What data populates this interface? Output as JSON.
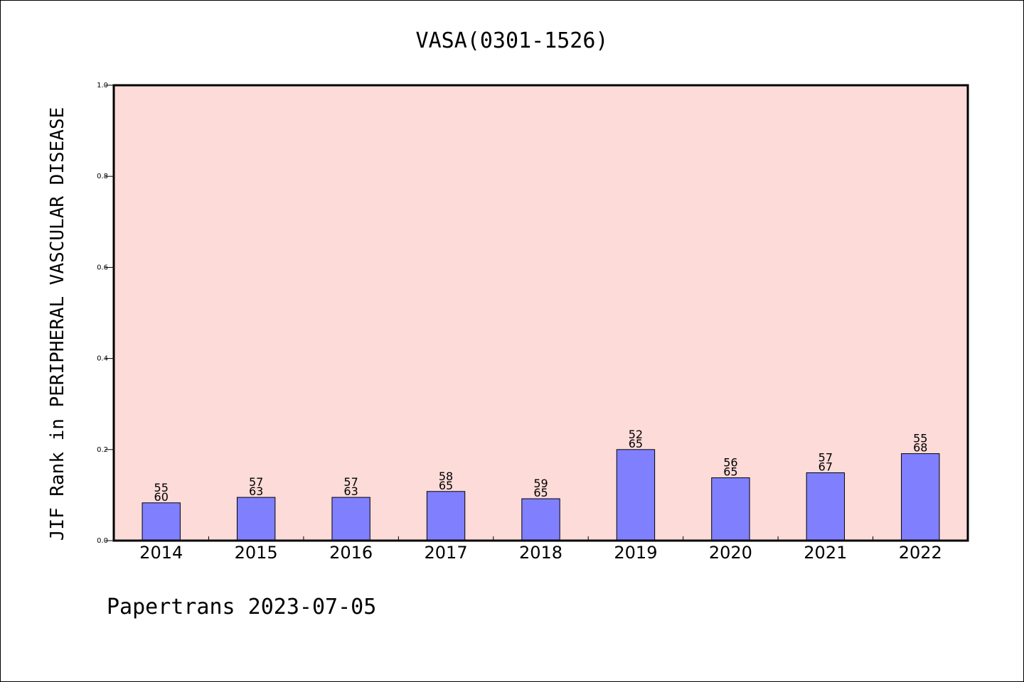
{
  "chart_data": {
    "type": "bar",
    "title": "VASA(0301-1526)",
    "ylabel": "JIF Rank in PERIPHERAL VASCULAR DISEASE",
    "xlabel": "",
    "categories": [
      "2014",
      "2015",
      "2016",
      "2017",
      "2018",
      "2019",
      "2020",
      "2021",
      "2022"
    ],
    "values": [
      0.083,
      0.095,
      0.095,
      0.108,
      0.092,
      0.2,
      0.138,
      0.149,
      0.191
    ],
    "rank_labels": [
      "55",
      "57",
      "57",
      "58",
      "59",
      "52",
      "56",
      "57",
      "55"
    ],
    "total_labels": [
      "60",
      "63",
      "63",
      "65",
      "65",
      "65",
      "65",
      "67",
      "68"
    ],
    "ylim": [
      0,
      1.0
    ],
    "yticks": [
      "0.0",
      "0.2",
      "0.4",
      "0.6",
      "0.8",
      "1.0"
    ],
    "grid": false,
    "colors": {
      "plot_background": "#fddbd8",
      "bar_fill": "#8080ff",
      "bar_stroke": "#000000"
    }
  },
  "footer": {
    "text": "Papertrans 2023-07-05"
  }
}
